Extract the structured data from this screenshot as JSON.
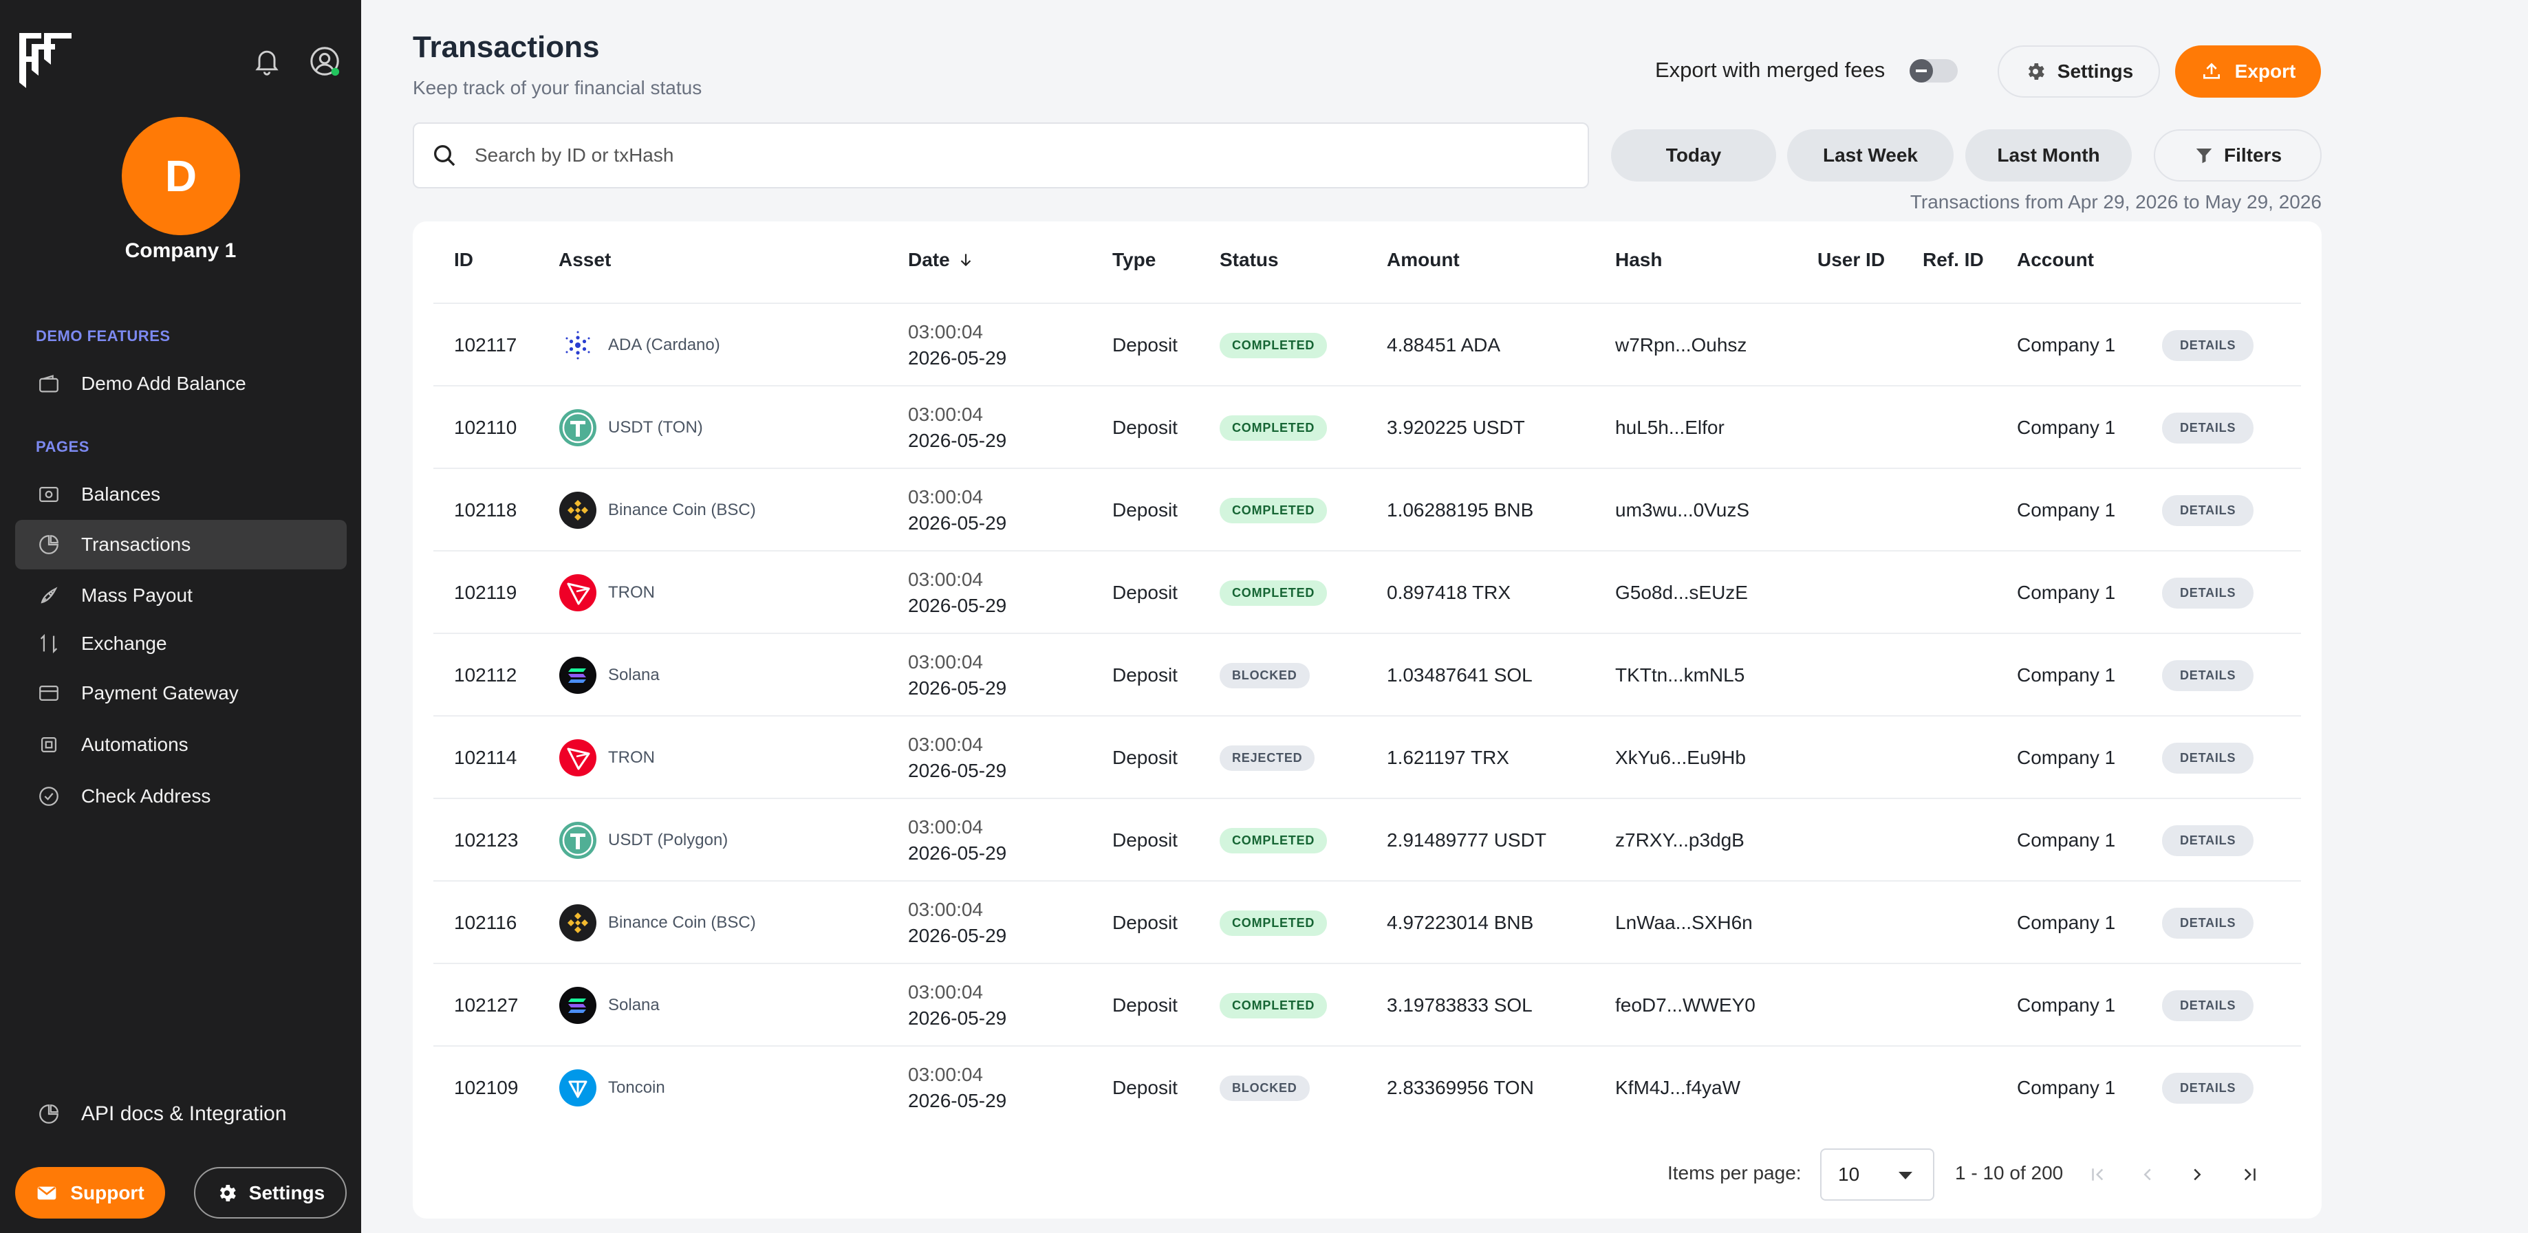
{
  "sidebar": {
    "company_initial": "D",
    "company_name": "Company 1",
    "demo_section_title": "DEMO FEATURES",
    "demo_item": "Demo Add Balance",
    "pages_section_title": "PAGES",
    "items": [
      {
        "label": "Balances",
        "icon": "wallet-icon"
      },
      {
        "label": "Transactions",
        "icon": "transactions-icon",
        "active": true
      },
      {
        "label": "Mass Payout",
        "icon": "rocket-icon"
      },
      {
        "label": "Exchange",
        "icon": "exchange-icon"
      },
      {
        "label": "Payment Gateway",
        "icon": "card-icon"
      },
      {
        "label": "Automations",
        "icon": "chip-icon"
      },
      {
        "label": "Check Address",
        "icon": "check-circle-icon"
      }
    ],
    "api_docs": "API docs & Integration",
    "support_label": "Support",
    "settings_label": "Settings"
  },
  "header": {
    "title": "Transactions",
    "subtitle": "Keep track of your financial status",
    "merge_fees_label": "Export with merged fees",
    "merge_fees_enabled": false,
    "settings_label": "Settings",
    "export_label": "Export"
  },
  "search": {
    "placeholder": "Search by ID or txHash"
  },
  "date_filters": [
    "Today",
    "Last Week",
    "Last Month"
  ],
  "filters_label": "Filters",
  "range_note": "Transactions from Apr 29, 2026 to May 29, 2026",
  "table": {
    "columns": [
      "ID",
      "Asset",
      "Date",
      "Type",
      "Status",
      "Amount",
      "Hash",
      "User ID",
      "Ref. ID",
      "Account"
    ],
    "details_label": "DETAILS",
    "rows": [
      {
        "id": "102117",
        "asset": "ADA (Cardano)",
        "coin": "ada",
        "time": "03:00:04",
        "date": "2026-05-29",
        "type": "Deposit",
        "status": "COMPLETED",
        "amount": "4.88451 ADA",
        "hash": "w7Rpn...Ouhsz",
        "user_id": "",
        "ref_id": "",
        "account": "Company 1"
      },
      {
        "id": "102110",
        "asset": "USDT (TON)",
        "coin": "usdt",
        "time": "03:00:04",
        "date": "2026-05-29",
        "type": "Deposit",
        "status": "COMPLETED",
        "amount": "3.920225 USDT",
        "hash": "huL5h...Elfor",
        "user_id": "",
        "ref_id": "",
        "account": "Company 1"
      },
      {
        "id": "102118",
        "asset": "Binance Coin (BSC)",
        "coin": "bnb",
        "time": "03:00:04",
        "date": "2026-05-29",
        "type": "Deposit",
        "status": "COMPLETED",
        "amount": "1.06288195 BNB",
        "hash": "um3wu...0VuzS",
        "user_id": "",
        "ref_id": "",
        "account": "Company 1"
      },
      {
        "id": "102119",
        "asset": "TRON",
        "coin": "trx",
        "time": "03:00:04",
        "date": "2026-05-29",
        "type": "Deposit",
        "status": "COMPLETED",
        "amount": "0.897418 TRX",
        "hash": "G5o8d...sEUzE",
        "user_id": "",
        "ref_id": "",
        "account": "Company 1"
      },
      {
        "id": "102112",
        "asset": "Solana",
        "coin": "sol",
        "time": "03:00:04",
        "date": "2026-05-29",
        "type": "Deposit",
        "status": "BLOCKED",
        "amount": "1.03487641 SOL",
        "hash": "TKTtn...kmNL5",
        "user_id": "",
        "ref_id": "",
        "account": "Company 1"
      },
      {
        "id": "102114",
        "asset": "TRON",
        "coin": "trx",
        "time": "03:00:04",
        "date": "2026-05-29",
        "type": "Deposit",
        "status": "REJECTED",
        "amount": "1.621197 TRX",
        "hash": "XkYu6...Eu9Hb",
        "user_id": "",
        "ref_id": "",
        "account": "Company 1"
      },
      {
        "id": "102123",
        "asset": "USDT (Polygon)",
        "coin": "usdt",
        "time": "03:00:04",
        "date": "2026-05-29",
        "type": "Deposit",
        "status": "COMPLETED",
        "amount": "2.91489777 USDT",
        "hash": "z7RXY...p3dgB",
        "user_id": "",
        "ref_id": "",
        "account": "Company 1"
      },
      {
        "id": "102116",
        "asset": "Binance Coin (BSC)",
        "coin": "bnb",
        "time": "03:00:04",
        "date": "2026-05-29",
        "type": "Deposit",
        "status": "COMPLETED",
        "amount": "4.97223014 BNB",
        "hash": "LnWaa...SXH6n",
        "user_id": "",
        "ref_id": "",
        "account": "Company 1"
      },
      {
        "id": "102127",
        "asset": "Solana",
        "coin": "sol",
        "time": "03:00:04",
        "date": "2026-05-29",
        "type": "Deposit",
        "status": "COMPLETED",
        "amount": "3.19783833 SOL",
        "hash": "feoD7...WWEY0",
        "user_id": "",
        "ref_id": "",
        "account": "Company 1"
      },
      {
        "id": "102109",
        "asset": "Toncoin",
        "coin": "ton",
        "time": "03:00:04",
        "date": "2026-05-29",
        "type": "Deposit",
        "status": "BLOCKED",
        "amount": "2.83369956 TON",
        "hash": "KfM4J...f4yaW",
        "user_id": "",
        "ref_id": "",
        "account": "Company 1"
      }
    ]
  },
  "pagination": {
    "items_per_page_label": "Items per page:",
    "items_per_page": "10",
    "range": "1 - 10 of 200"
  },
  "colors": {
    "accent": "#ff7a06",
    "sidebar_bg": "#1e1e1f",
    "completed_bg": "#d3f5dd",
    "section_title": "#7c89f0"
  }
}
